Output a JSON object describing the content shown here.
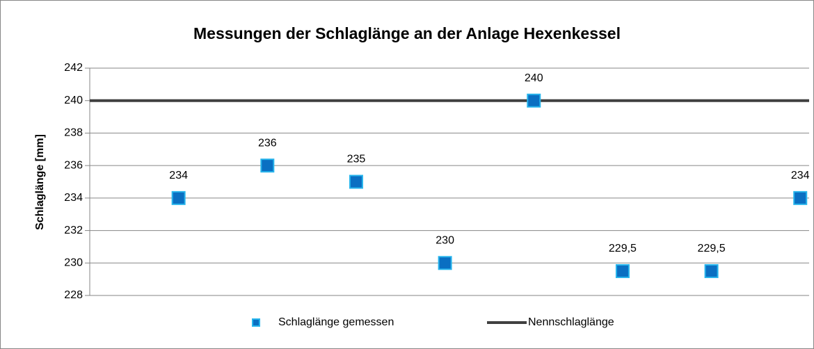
{
  "chart_data": {
    "type": "scatter",
    "title": "Messungen der Schlaglänge an der Anlage Hexenkessel",
    "y_label": "Schlaglänge [mm]",
    "xlim": [
      0,
      8.1
    ],
    "ylim": [
      228,
      242
    ],
    "yticks": [
      228,
      230,
      232,
      234,
      236,
      238,
      240,
      242
    ],
    "grid": true,
    "legend": "bottom",
    "series": [
      {
        "name": "Schlaglänge gemessen",
        "type": "scatter",
        "color": "#0a6fc2",
        "edge_color": "#27b4ec",
        "x": [
          1,
          2,
          3,
          4,
          5,
          6,
          7,
          8
        ],
        "values": [
          234,
          236,
          235,
          230,
          240,
          229.5,
          229.5,
          234
        ],
        "value_labels": [
          "234",
          "236",
          "235",
          "230",
          "240",
          "229,5",
          "229,5",
          "234"
        ]
      },
      {
        "name": "Nennschlaglänge",
        "type": "line",
        "color": "#404040",
        "x": [
          0,
          8.1
        ],
        "values": [
          240,
          240
        ]
      }
    ]
  }
}
